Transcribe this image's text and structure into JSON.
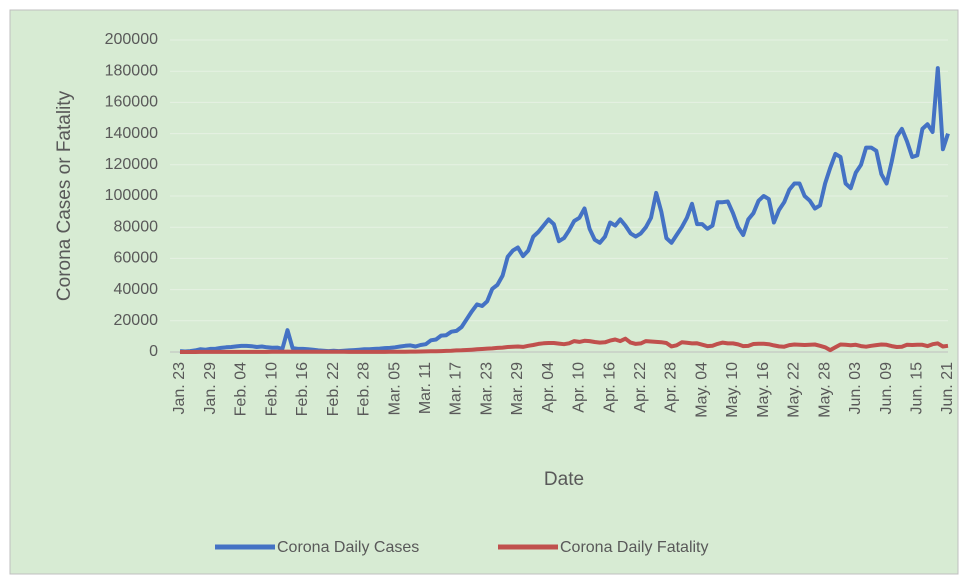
{
  "chart_data": {
    "type": "line",
    "x_label": "Date",
    "y_label": "Corona Cases or Fatality",
    "categories": [
      "Jan. 23",
      null,
      null,
      null,
      null,
      null,
      "Jan. 29",
      null,
      null,
      null,
      null,
      null,
      "Feb. 04",
      null,
      null,
      null,
      null,
      null,
      "Feb. 10",
      null,
      null,
      null,
      null,
      null,
      "Feb. 16",
      null,
      null,
      null,
      null,
      null,
      "Feb. 22",
      null,
      null,
      null,
      null,
      null,
      "Feb. 28",
      null,
      null,
      null,
      null,
      null,
      "Mar. 05",
      null,
      null,
      null,
      null,
      null,
      "Mar. 11",
      null,
      null,
      null,
      null,
      null,
      "Mar. 17",
      null,
      null,
      null,
      null,
      null,
      "Mar. 23",
      null,
      null,
      null,
      null,
      null,
      "Mar. 29",
      null,
      null,
      null,
      null,
      null,
      "Apr. 04",
      null,
      null,
      null,
      null,
      null,
      "Apr. 10",
      null,
      null,
      null,
      null,
      null,
      "Apr. 16",
      null,
      null,
      null,
      null,
      null,
      "Apr. 22",
      null,
      null,
      null,
      null,
      null,
      "Apr. 28",
      null,
      null,
      null,
      null,
      null,
      "May. 04",
      null,
      null,
      null,
      null,
      null,
      "May. 10",
      null,
      null,
      null,
      null,
      null,
      "May. 16",
      null,
      null,
      null,
      null,
      null,
      "May. 22",
      null,
      null,
      null,
      null,
      null,
      "May. 28",
      null,
      null,
      null,
      null,
      null,
      "Jun. 03",
      null,
      null,
      null,
      null,
      null,
      "Jun. 09",
      null,
      null,
      null,
      null,
      null,
      "Jun. 15",
      null,
      null,
      null,
      null,
      null,
      "Jun. 21"
    ],
    "series": [
      {
        "name": "Corona Daily Cases",
        "color": "#4472c4",
        "values": [
          600,
          300,
          600,
          1000,
          1800,
          1500,
          2000,
          2100,
          2600,
          3000,
          3200,
          3600,
          3900,
          3900,
          3700,
          3200,
          3500,
          3000,
          2700,
          2800,
          2000,
          14000,
          2500,
          2000,
          2000,
          1800,
          1500,
          1000,
          800,
          600,
          800,
          600,
          800,
          1000,
          1200,
          1500,
          1800,
          1800,
          2000,
          2200,
          2500,
          2600,
          3000,
          3500,
          4000,
          4200,
          3500,
          4500,
          5000,
          7500,
          8000,
          10500,
          10800,
          13000,
          13500,
          16000,
          21000,
          26000,
          30500,
          29500,
          32500,
          40500,
          43000,
          49000,
          61000,
          65000,
          67000,
          61500,
          65000,
          74000,
          77000,
          81000,
          85000,
          82000,
          71000,
          73000,
          78000,
          84000,
          86000,
          92000,
          79000,
          72000,
          70000,
          74000,
          83000,
          81000,
          85000,
          81000,
          76000,
          74000,
          76000,
          80000,
          86000,
          102000,
          90000,
          73000,
          70000,
          75000,
          80000,
          86000,
          95000,
          82000,
          82000,
          79000,
          81000,
          96000,
          96000,
          96500,
          89000,
          80000,
          75000,
          85000,
          89000,
          97000,
          100000,
          98000,
          83000,
          91000,
          96000,
          104000,
          108000,
          108000,
          100000,
          97000,
          92000,
          94000,
          108000,
          118000,
          127000,
          125000,
          108000,
          105000,
          115000,
          120000,
          131000,
          131000,
          129000,
          114000,
          108000,
          122000,
          138000,
          143000,
          135000,
          125000,
          126000,
          143000,
          146000,
          141000,
          182000,
          130000,
          140000
        ]
      },
      {
        "name": "Corona Daily  Fatality",
        "color": "#c0504d",
        "values": [
          17,
          0,
          20,
          30,
          40,
          50,
          40,
          40,
          50,
          60,
          60,
          60,
          70,
          70,
          70,
          80,
          90,
          90,
          100,
          110,
          100,
          250,
          140,
          140,
          140,
          140,
          100,
          120,
          110,
          110,
          110,
          110,
          100,
          70,
          90,
          90,
          80,
          80,
          80,
          90,
          90,
          100,
          150,
          170,
          200,
          250,
          270,
          350,
          400,
          450,
          500,
          600,
          700,
          800,
          1000,
          1100,
          1300,
          1500,
          1700,
          1900,
          2200,
          2300,
          2600,
          2800,
          3200,
          3400,
          3500,
          3300,
          4000,
          4500,
          5200,
          5600,
          5800,
          5800,
          5400,
          5000,
          5600,
          7000,
          6500,
          7200,
          7000,
          6400,
          6000,
          6200,
          7300,
          8000,
          7000,
          8500,
          6000,
          5200,
          5500,
          7000,
          6700,
          6500,
          6300,
          5800,
          3600,
          4300,
          6200,
          5900,
          5500,
          5600,
          4700,
          3800,
          4000,
          5200,
          6000,
          5500,
          5500,
          4900,
          3800,
          3900,
          5100,
          5300,
          5300,
          5000,
          4200,
          3600,
          3400,
          4400,
          4800,
          4600,
          4500,
          4700,
          4800,
          4000,
          3000,
          1200,
          3100,
          4800,
          4600,
          4300,
          4600,
          3800,
          3400,
          4000,
          4400,
          4800,
          4600,
          3800,
          3200,
          3400,
          4600,
          4500,
          4700,
          4600,
          3800,
          5000,
          5500,
          3500,
          4000
        ]
      }
    ],
    "ylim": [
      0,
      200000
    ],
    "yticks": [
      0,
      20000,
      40000,
      60000,
      80000,
      100000,
      120000,
      140000,
      160000,
      180000,
      200000
    ],
    "grid": true,
    "legend": "bottom",
    "background": "#d7ebd3"
  }
}
